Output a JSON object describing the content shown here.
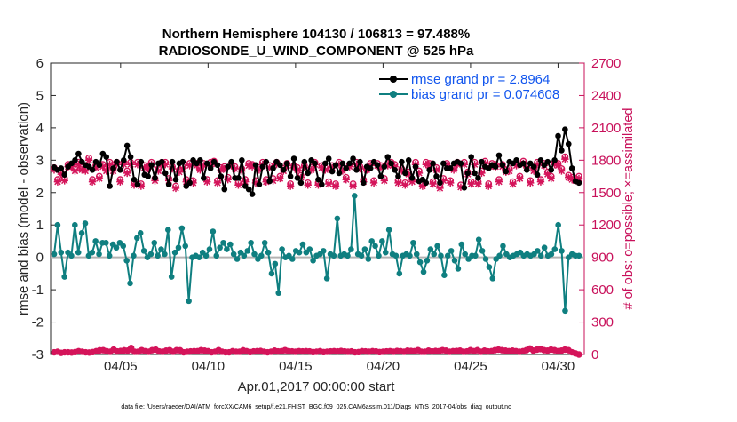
{
  "chart_data": {
    "type": "line",
    "title_line1": "Northern Hemisphere 104130 / 106813 = 97.488%",
    "title_line2": "RADIOSONDE_U_WIND_COMPONENT @ 525 hPa",
    "xlabel": "Apr.01,2017 00:00:00 start",
    "ylabel": "rmse and bias (model - observation)",
    "ylabel_right": "# of obs: o=possible; ×=assimilated",
    "ylim": [
      -3,
      6
    ],
    "ylim_right": [
      0,
      2700
    ],
    "yticks": [
      "-3",
      "-2",
      "-1",
      "0",
      "1",
      "2",
      "3",
      "4",
      "5",
      "6"
    ],
    "yticks_right": [
      "0",
      "300",
      "600",
      "900",
      "1200",
      "1500",
      "1800",
      "2100",
      "2400",
      "2700"
    ],
    "xlim": [
      1,
      31.5
    ],
    "xticks": [
      {
        "day": 5,
        "label": "04/05"
      },
      {
        "day": 10,
        "label": "04/10"
      },
      {
        "day": 15,
        "label": "04/15"
      },
      {
        "day": 20,
        "label": "04/20"
      },
      {
        "day": 25,
        "label": "04/25"
      },
      {
        "day": 30,
        "label": "04/30"
      }
    ],
    "footnote": "data file: /Users/raeder/DAI/ATM_forcXX/CAM6_setup/f.e21.FHIST_BGC.f09_025.CAM6assim.011/Diags_NTrS_2017-04/obs_diag_output.nc",
    "colors": {
      "rmse": "#000000",
      "bias": "#0f7f80",
      "obs": "#d4145a",
      "zero": "#b3b3b3",
      "legend_text": "#1155ee"
    },
    "series": [
      {
        "name": "rmse",
        "legend": "rmse grand pr = 2.8964",
        "axis": "left",
        "values": [
          2.78,
          2.7,
          2.75,
          2.55,
          2.8,
          2.9,
          3.0,
          3.2,
          2.95,
          2.85,
          2.8,
          2.7,
          2.95,
          2.85,
          3.2,
          3.1,
          2.2,
          2.75,
          2.95,
          2.7,
          3.0,
          3.45,
          3.1,
          2.4,
          2.25,
          2.95,
          2.55,
          2.5,
          2.85,
          2.45,
          2.9,
          2.95,
          2.6,
          2.25,
          2.95,
          2.4,
          2.9,
          2.95,
          2.2,
          2.3,
          3.0,
          2.9,
          3.0,
          2.45,
          2.9,
          2.75,
          2.95,
          2.85,
          2.5,
          2.1,
          2.8,
          2.95,
          2.45,
          2.45,
          3.0,
          2.2,
          2.1,
          1.95,
          2.85,
          2.25,
          2.8,
          2.95,
          2.35,
          2.75,
          2.95,
          2.85,
          2.7,
          2.9,
          2.5,
          3.05,
          2.45,
          2.3,
          2.95,
          2.6,
          3.0,
          2.9,
          2.4,
          2.25,
          2.9,
          3.05,
          2.65,
          2.85,
          2.6,
          2.9,
          2.75,
          2.9,
          3.05,
          2.7,
          2.95,
          2.3,
          2.8,
          2.75,
          2.95,
          2.85,
          2.5,
          2.8,
          3.1,
          2.9,
          2.7,
          2.5,
          2.95,
          2.6,
          3.0,
          2.45,
          2.8,
          2.35,
          2.4,
          2.3,
          2.7,
          2.9,
          2.5,
          2.3,
          2.9,
          2.75,
          2.75,
          2.9,
          2.95,
          2.9,
          2.15,
          2.6,
          3.1,
          2.6,
          2.45,
          2.95,
          2.8,
          2.75,
          2.85,
          2.8,
          3.15,
          2.85,
          2.65,
          2.95,
          2.9,
          3.0,
          2.85,
          2.9,
          2.7,
          2.9,
          2.8,
          2.55,
          3.0,
          2.85,
          2.95,
          2.7,
          3.0,
          3.75,
          3.3,
          3.95,
          3.5,
          2.75,
          2.35,
          2.3
        ]
      },
      {
        "name": "bias",
        "legend": "bias grand pr = 0.074608",
        "axis": "left",
        "values": [
          0.1,
          1.0,
          0.15,
          -0.6,
          0.15,
          0.05,
          1.0,
          0.15,
          0.75,
          1.05,
          0.05,
          0.15,
          0.5,
          0.1,
          0.45,
          0.45,
          0.05,
          0.4,
          0.3,
          0.45,
          0.35,
          -0.1,
          -0.8,
          0.05,
          0.6,
          0.75,
          0.2,
          0.0,
          0.1,
          0.45,
          0.05,
          0.25,
          0.1,
          0.85,
          -0.6,
          0.15,
          0.3,
          0.9,
          0.35,
          -1.35,
          0.0,
          0.05,
          0.0,
          0.15,
          0.05,
          0.25,
          0.8,
          0.05,
          0.3,
          0.45,
          0.25,
          0.4,
          0.1,
          -0.05,
          0.15,
          0.05,
          0.2,
          0.45,
          0.1,
          -0.05,
          0.05,
          0.45,
          0.15,
          -0.5,
          -0.2,
          -1.1,
          0.25,
          0.0,
          0.05,
          -0.05,
          0.2,
          0.15,
          0.4,
          0.15,
          0.25,
          -0.1,
          0.05,
          0.1,
          0.2,
          -0.65,
          0.1,
          0.05,
          1.2,
          0.05,
          0.1,
          0.05,
          0.25,
          1.9,
          0.1,
          0.05,
          0.25,
          -0.05,
          0.5,
          0.35,
          0.05,
          0.5,
          0.15,
          0.85,
          0.1,
          0.05,
          -0.5,
          0.05,
          0.1,
          0.05,
          0.45,
          0.1,
          -0.15,
          -0.45,
          -0.1,
          0.25,
          0.1,
          0.35,
          0.05,
          -0.55,
          0.05,
          0.2,
          -0.1,
          -0.35,
          0.4,
          0.1,
          -0.05,
          0.05,
          0.05,
          0.55,
          0.2,
          -0.05,
          -0.3,
          -0.65,
          -0.05,
          0.05,
          0.35,
          0.1,
          0.0,
          0.05,
          0.1,
          0.15,
          0.05,
          0.1,
          0.05,
          0.1,
          0.2,
          0.05,
          0.3,
          0.05,
          0.1,
          0.25,
          1.0,
          0.2,
          -1.65,
          0.0,
          0.1,
          0.05,
          0.05
        ]
      },
      {
        "name": "obs_possible",
        "legend": "",
        "axis": "right",
        "values": [
          1730,
          1620,
          1690,
          1630,
          1760,
          1760,
          1720,
          1780,
          1730,
          1720,
          1820,
          1620,
          1750,
          1650,
          1760,
          1720,
          1780,
          1720,
          1780,
          1620,
          1780,
          1700,
          1780,
          1590,
          1780,
          1580,
          1750,
          1740,
          1780,
          1630,
          1720,
          1780,
          1780,
          1630,
          1740,
          1560,
          1710,
          1740,
          1620,
          1770,
          1610,
          1770,
          1730,
          1770,
          1620,
          1780,
          1790,
          1610,
          1730,
          1740,
          1640,
          1770,
          1740,
          1590,
          1720,
          1620,
          1770,
          1760,
          1610,
          1730,
          1780,
          1620,
          1750,
          1630,
          1780,
          1650,
          1720,
          1770,
          1580,
          1750,
          1730,
          1660,
          1750,
          1590,
          1730,
          1780,
          1590,
          1750,
          1730,
          1600,
          1750,
          1580,
          1780,
          1720,
          1640,
          1760,
          1580,
          1780,
          1740,
          1620,
          1730,
          1770,
          1610,
          1770,
          1750,
          1630,
          1770,
          1780,
          1760,
          1610,
          1720,
          1590,
          1690,
          1620,
          1780,
          1700,
          1580,
          1780,
          1770,
          1600,
          1730,
          1560,
          1630,
          1770,
          1610,
          1730,
          1780,
          1570,
          1780,
          1690,
          1600,
          1780,
          1600,
          1700,
          1790,
          1580,
          1770,
          1760,
          1620,
          1760,
          1710,
          1720,
          1600,
          1770,
          1650,
          1790,
          1750,
          1610,
          1720,
          1780,
          1620,
          1770,
          1690,
          1650,
          1780,
          1770,
          1720,
          1830,
          1660,
          1640,
          1630,
          1650
        ]
      },
      {
        "name": "obs_assimilated",
        "legend": "",
        "axis": "right",
        "values": [
          1710,
          1600,
          1670,
          1610,
          1740,
          1740,
          1700,
          1760,
          1710,
          1700,
          1800,
          1600,
          1730,
          1630,
          1740,
          1700,
          1760,
          1700,
          1760,
          1600,
          1760,
          1680,
          1760,
          1570,
          1760,
          1560,
          1730,
          1720,
          1760,
          1610,
          1700,
          1760,
          1760,
          1610,
          1720,
          1540,
          1690,
          1720,
          1600,
          1750,
          1590,
          1750,
          1710,
          1750,
          1600,
          1760,
          1770,
          1590,
          1710,
          1720,
          1620,
          1750,
          1720,
          1570,
          1700,
          1600,
          1750,
          1740,
          1590,
          1710,
          1760,
          1600,
          1730,
          1610,
          1760,
          1630,
          1700,
          1750,
          1560,
          1730,
          1710,
          1640,
          1730,
          1570,
          1710,
          1760,
          1570,
          1730,
          1710,
          1580,
          1730,
          1560,
          1760,
          1700,
          1620,
          1740,
          1560,
          1760,
          1720,
          1600,
          1710,
          1750,
          1590,
          1750,
          1730,
          1610,
          1750,
          1760,
          1740,
          1590,
          1700,
          1570,
          1670,
          1600,
          1760,
          1680,
          1560,
          1760,
          1750,
          1580,
          1710,
          1540,
          1610,
          1750,
          1590,
          1710,
          1760,
          1550,
          1760,
          1670,
          1580,
          1760,
          1580,
          1680,
          1770,
          1560,
          1750,
          1740,
          1600,
          1740,
          1690,
          1700,
          1580,
          1750,
          1630,
          1770,
          1730,
          1590,
          1700,
          1760,
          1600,
          1750,
          1670,
          1630,
          1760,
          1750,
          1700,
          1810,
          1640,
          1620,
          1610,
          1630
        ]
      },
      {
        "name": "obs_bottom_possible",
        "legend": "",
        "axis": "right",
        "values": [
          20,
          25,
          15,
          20,
          20,
          18,
          22,
          30,
          25,
          20,
          18,
          22,
          30,
          38,
          40,
          30,
          25,
          45,
          28,
          32,
          38,
          35,
          60,
          25,
          25,
          40,
          30,
          25,
          40,
          45,
          28,
          25,
          35,
          40,
          25,
          40,
          38,
          20,
          25,
          28,
          30,
          30,
          40,
          35,
          30,
          20,
          25,
          40,
          25,
          20,
          20,
          30,
          25,
          25,
          38,
          30,
          22,
          28,
          30,
          32,
          25,
          20,
          25,
          35,
          28,
          30,
          40,
          30,
          28,
          25,
          30,
          28,
          30,
          28,
          22,
          25,
          30,
          22,
          25,
          28,
          30,
          28,
          32,
          28,
          25,
          28,
          20,
          22,
          30,
          28,
          25,
          30,
          28,
          22,
          25,
          28,
          30,
          25,
          32,
          30,
          25,
          35,
          32,
          30,
          40,
          25,
          25,
          35,
          28,
          32,
          30,
          40,
          35,
          25,
          30,
          32,
          35,
          25,
          28,
          40,
          30,
          40,
          25,
          35,
          28,
          30,
          40,
          45,
          40,
          35,
          30,
          35,
          30,
          25,
          30,
          40,
          55,
          35,
          45,
          50,
          40,
          35,
          45,
          40,
          30,
          35,
          45,
          40,
          20,
          10,
          -15
        ]
      }
    ]
  }
}
